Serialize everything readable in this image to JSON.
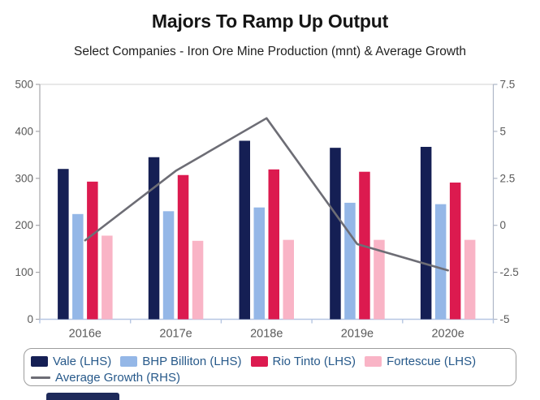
{
  "header": {
    "title": "Majors To Ramp Up Output",
    "subtitle": "Select Companies - Iron Ore Mine Production (mnt) & Average Growth"
  },
  "chart_data": {
    "type": "bar",
    "subtype": "grouped bars with overlay line (dual axis)",
    "categories": [
      "2016e",
      "2017e",
      "2018e",
      "2019e",
      "2020e"
    ],
    "series": [
      {
        "name": "Vale (LHS)",
        "type": "bar",
        "axis": "left",
        "color": "#151f54",
        "values": [
          320,
          345,
          380,
          365,
          367
        ]
      },
      {
        "name": "BHP Billiton (LHS)",
        "type": "bar",
        "axis": "left",
        "color": "#94b7e7",
        "values": [
          224,
          230,
          238,
          248,
          245
        ]
      },
      {
        "name": "Rio Tinto (LHS)",
        "type": "bar",
        "axis": "left",
        "color": "#dc1a4f",
        "values": [
          293,
          307,
          319,
          314,
          291
        ]
      },
      {
        "name": "Fortescue (LHS)",
        "type": "bar",
        "axis": "left",
        "color": "#f9b4c6",
        "values": [
          178,
          167,
          169,
          169,
          169
        ]
      },
      {
        "name": "Average Growth (RHS)",
        "type": "line",
        "axis": "right",
        "color": "#6d6d75",
        "values": [
          -0.8,
          2.9,
          5.7,
          -1.0,
          -2.4
        ]
      }
    ],
    "left_axis": {
      "range": [
        0,
        500
      ],
      "ticks": [
        0,
        100,
        200,
        300,
        400,
        500
      ]
    },
    "right_axis": {
      "range": [
        -5,
        7.5
      ],
      "ticks": [
        -5,
        -2.5,
        0,
        2.5,
        5,
        7.5
      ]
    },
    "grid": "top gridline only",
    "legend_position": "bottom"
  },
  "colors": {
    "axis_left_gray": "#a6a6aa",
    "axis_right_gray": "#aeb6c6",
    "grid_top": "#d9d9d9",
    "x_axis_blue": "#b6c6e2",
    "tick_label": "#595959",
    "legend_text": "#27598a",
    "legend_border": "#9d9d9d",
    "partial_element": "#1e2a5a"
  }
}
